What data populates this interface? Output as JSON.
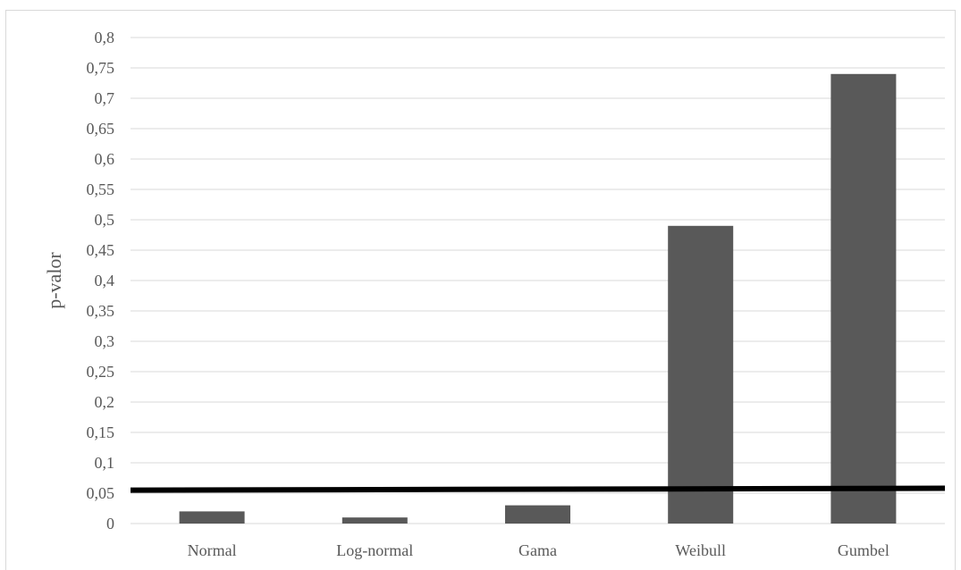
{
  "chart_data": {
    "type": "bar",
    "categories": [
      "Normal",
      "Log-normal",
      "Gama",
      "Weibull",
      "Gumbel"
    ],
    "values": [
      0.02,
      0.01,
      0.03,
      0.49,
      0.74
    ],
    "ylabel": "p-valor",
    "xlabel": "",
    "ylim": [
      0,
      0.8
    ],
    "yticks": [
      "0",
      "0,05",
      "0,1",
      "0,15",
      "0,2",
      "0,25",
      "0,3",
      "0,35",
      "0,4",
      "0,45",
      "0,5",
      "0,55",
      "0,6",
      "0,65",
      "0,7",
      "0,75",
      "0,8"
    ],
    "ytick_step": 0.05,
    "grid": true,
    "legend": "none",
    "bar_color": "#595959",
    "reference_line": {
      "y_start": 0.055,
      "y_end": 0.058,
      "color": "#000000"
    }
  }
}
